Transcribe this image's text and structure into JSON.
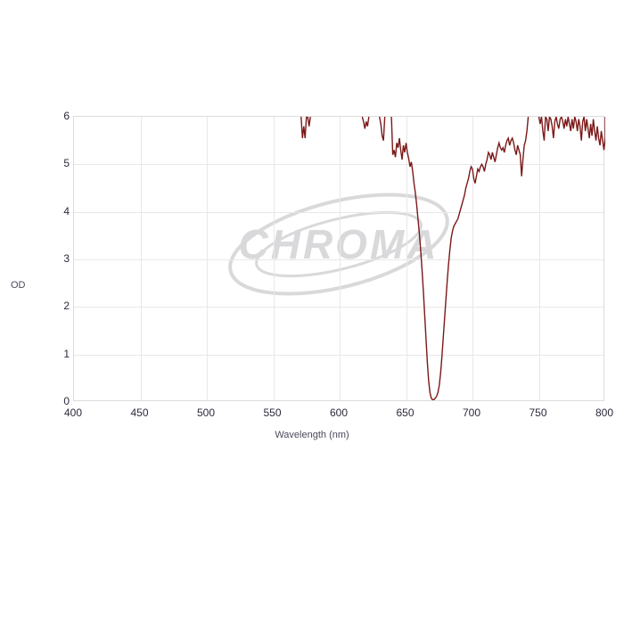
{
  "chart": {
    "type": "line",
    "line_color": "#7c1818",
    "background_color": "#ffffff",
    "grid_color": "#e8e8ea",
    "axis_border_color": "#dcdcde",
    "tick_font_color": "#2a2a3a",
    "tick_fontsize": 12,
    "label_font_color": "#4a4a5a",
    "label_fontsize": 11,
    "line_width": 1.4,
    "xlabel": "Wavelength (nm)",
    "ylabel": "OD",
    "xlim": [
      400,
      800
    ],
    "ylim": [
      0,
      6
    ],
    "xtick_step": 50,
    "ytick_step": 1,
    "xticks": [
      400,
      450,
      500,
      550,
      600,
      650,
      700,
      750,
      800
    ],
    "yticks": [
      0,
      1,
      2,
      3,
      4,
      5,
      6
    ],
    "watermark_text": "CHROMA",
    "watermark_color": "#d9d9db",
    "watermark_fontsize": 46,
    "series": {
      "x": [
        571,
        572,
        573,
        574,
        575,
        576,
        577,
        578,
        617,
        618,
        619,
        620,
        621,
        622,
        630,
        631,
        632,
        633,
        634,
        639,
        640,
        641,
        642,
        643,
        644,
        645,
        646,
        647,
        648,
        649,
        650,
        651,
        652,
        653,
        654,
        655,
        656,
        657,
        658,
        659,
        660,
        661,
        662,
        663,
        664,
        665,
        666,
        667,
        668,
        669,
        670,
        671,
        672,
        673,
        674,
        675,
        676,
        677,
        678,
        679,
        680,
        681,
        682,
        683,
        684,
        685,
        686,
        687,
        688,
        689,
        690,
        691,
        692,
        693,
        694,
        695,
        696,
        697,
        698,
        699,
        700,
        701,
        702,
        703,
        704,
        705,
        706,
        707,
        708,
        709,
        710,
        711,
        712,
        713,
        714,
        715,
        716,
        717,
        718,
        719,
        720,
        721,
        722,
        723,
        724,
        725,
        726,
        727,
        728,
        729,
        730,
        731,
        732,
        733,
        734,
        735,
        736,
        737,
        738,
        739,
        740,
        741,
        742,
        750,
        751,
        752,
        753,
        754,
        755,
        756,
        757,
        758,
        759,
        760,
        761,
        762,
        763,
        764,
        765,
        766,
        767,
        768,
        769,
        770,
        771,
        772,
        773,
        774,
        775,
        776,
        777,
        778,
        779,
        780,
        781,
        782,
        783,
        784,
        785,
        786,
        787,
        788,
        789,
        790,
        791,
        792,
        793,
        794,
        795,
        796,
        797,
        798,
        799,
        800
      ],
      "y": [
        6,
        5.55,
        5.8,
        5.55,
        6,
        6,
        5.8,
        6,
        6,
        5.9,
        5.75,
        5.9,
        5.8,
        6,
        6,
        5.85,
        5.6,
        5.5,
        6,
        6,
        5.2,
        5.3,
        5.15,
        5.45,
        5.35,
        5.55,
        5.3,
        5.1,
        5.4,
        5.25,
        5.45,
        5.25,
        5.12,
        4.95,
        5.05,
        4.85,
        4.6,
        4.4,
        4.15,
        3.85,
        3.55,
        3.2,
        2.8,
        2.35,
        1.85,
        1.35,
        0.85,
        0.45,
        0.2,
        0.08,
        0.05,
        0.05,
        0.08,
        0.12,
        0.2,
        0.35,
        0.6,
        0.95,
        1.35,
        1.75,
        2.15,
        2.55,
        2.9,
        3.2,
        3.45,
        3.6,
        3.7,
        3.75,
        3.8,
        3.85,
        3.95,
        4.05,
        4.15,
        4.25,
        4.35,
        4.5,
        4.6,
        4.7,
        4.85,
        4.95,
        4.9,
        4.7,
        4.6,
        4.75,
        4.9,
        4.85,
        4.95,
        5.0,
        4.95,
        4.85,
        5.0,
        5.1,
        5.25,
        5.2,
        5.1,
        5.25,
        5.15,
        5.05,
        5.2,
        5.35,
        5.45,
        5.35,
        5.3,
        5.35,
        5.25,
        5.4,
        5.5,
        5.55,
        5.4,
        5.5,
        5.55,
        5.45,
        5.3,
        5.2,
        5.4,
        5.3,
        5.2,
        4.75,
        5.1,
        5.4,
        5.5,
        5.7,
        6,
        6,
        5.85,
        6,
        5.7,
        5.5,
        6,
        5.95,
        5.7,
        6,
        5.95,
        5.8,
        5.55,
        5.9,
        6,
        5.85,
        5.75,
        5.95,
        6,
        5.9,
        5.75,
        5.95,
        5.8,
        6,
        5.85,
        5.7,
        5.95,
        5.75,
        6,
        5.9,
        5.7,
        5.95,
        5.8,
        5.5,
        5.9,
        6,
        5.7,
        5.95,
        5.75,
        5.55,
        5.85,
        5.6,
        5.95,
        5.7,
        5.5,
        5.8,
        5.55,
        5.4,
        5.7,
        5.5,
        5.3,
        5.55
      ]
    }
  }
}
